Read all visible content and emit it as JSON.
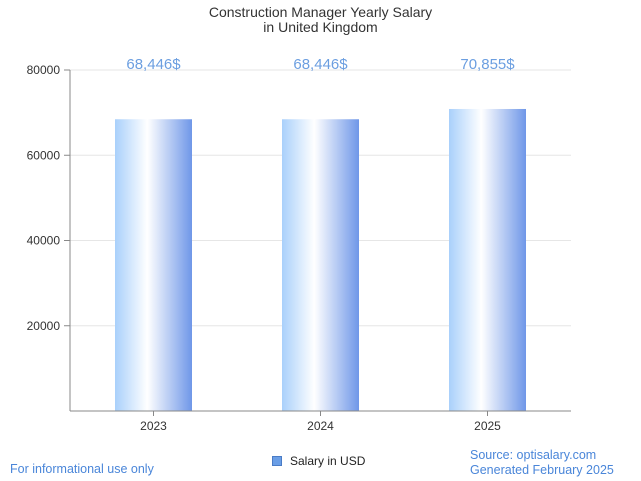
{
  "chart_data": {
    "type": "bar",
    "title_lines": [
      "Construction Manager Yearly Salary",
      "in United Kingdom"
    ],
    "categories": [
      "2023",
      "2024",
      "2025"
    ],
    "series": [
      {
        "name": "Salary in USD",
        "values": [
          68446,
          68446,
          70855
        ]
      }
    ],
    "data_labels": [
      "68,446$",
      "68,446$",
      "70,855$"
    ],
    "y_ticks": [
      20000,
      40000,
      60000,
      80000
    ],
    "ylim": [
      0,
      80000
    ],
    "grid": true,
    "legend_position": "bottom-center",
    "colors": {
      "bar_light": "#ffffff",
      "bar_mid": "#a9d0fb",
      "bar_dark": "#6f97e8",
      "label": "#6b9ee0",
      "grid": "#e6e6e6",
      "axis": "#888888"
    }
  },
  "footer": {
    "left_note": "For informational use only",
    "source": "Source: optisalary.com",
    "generated": "Generated February 2025"
  }
}
